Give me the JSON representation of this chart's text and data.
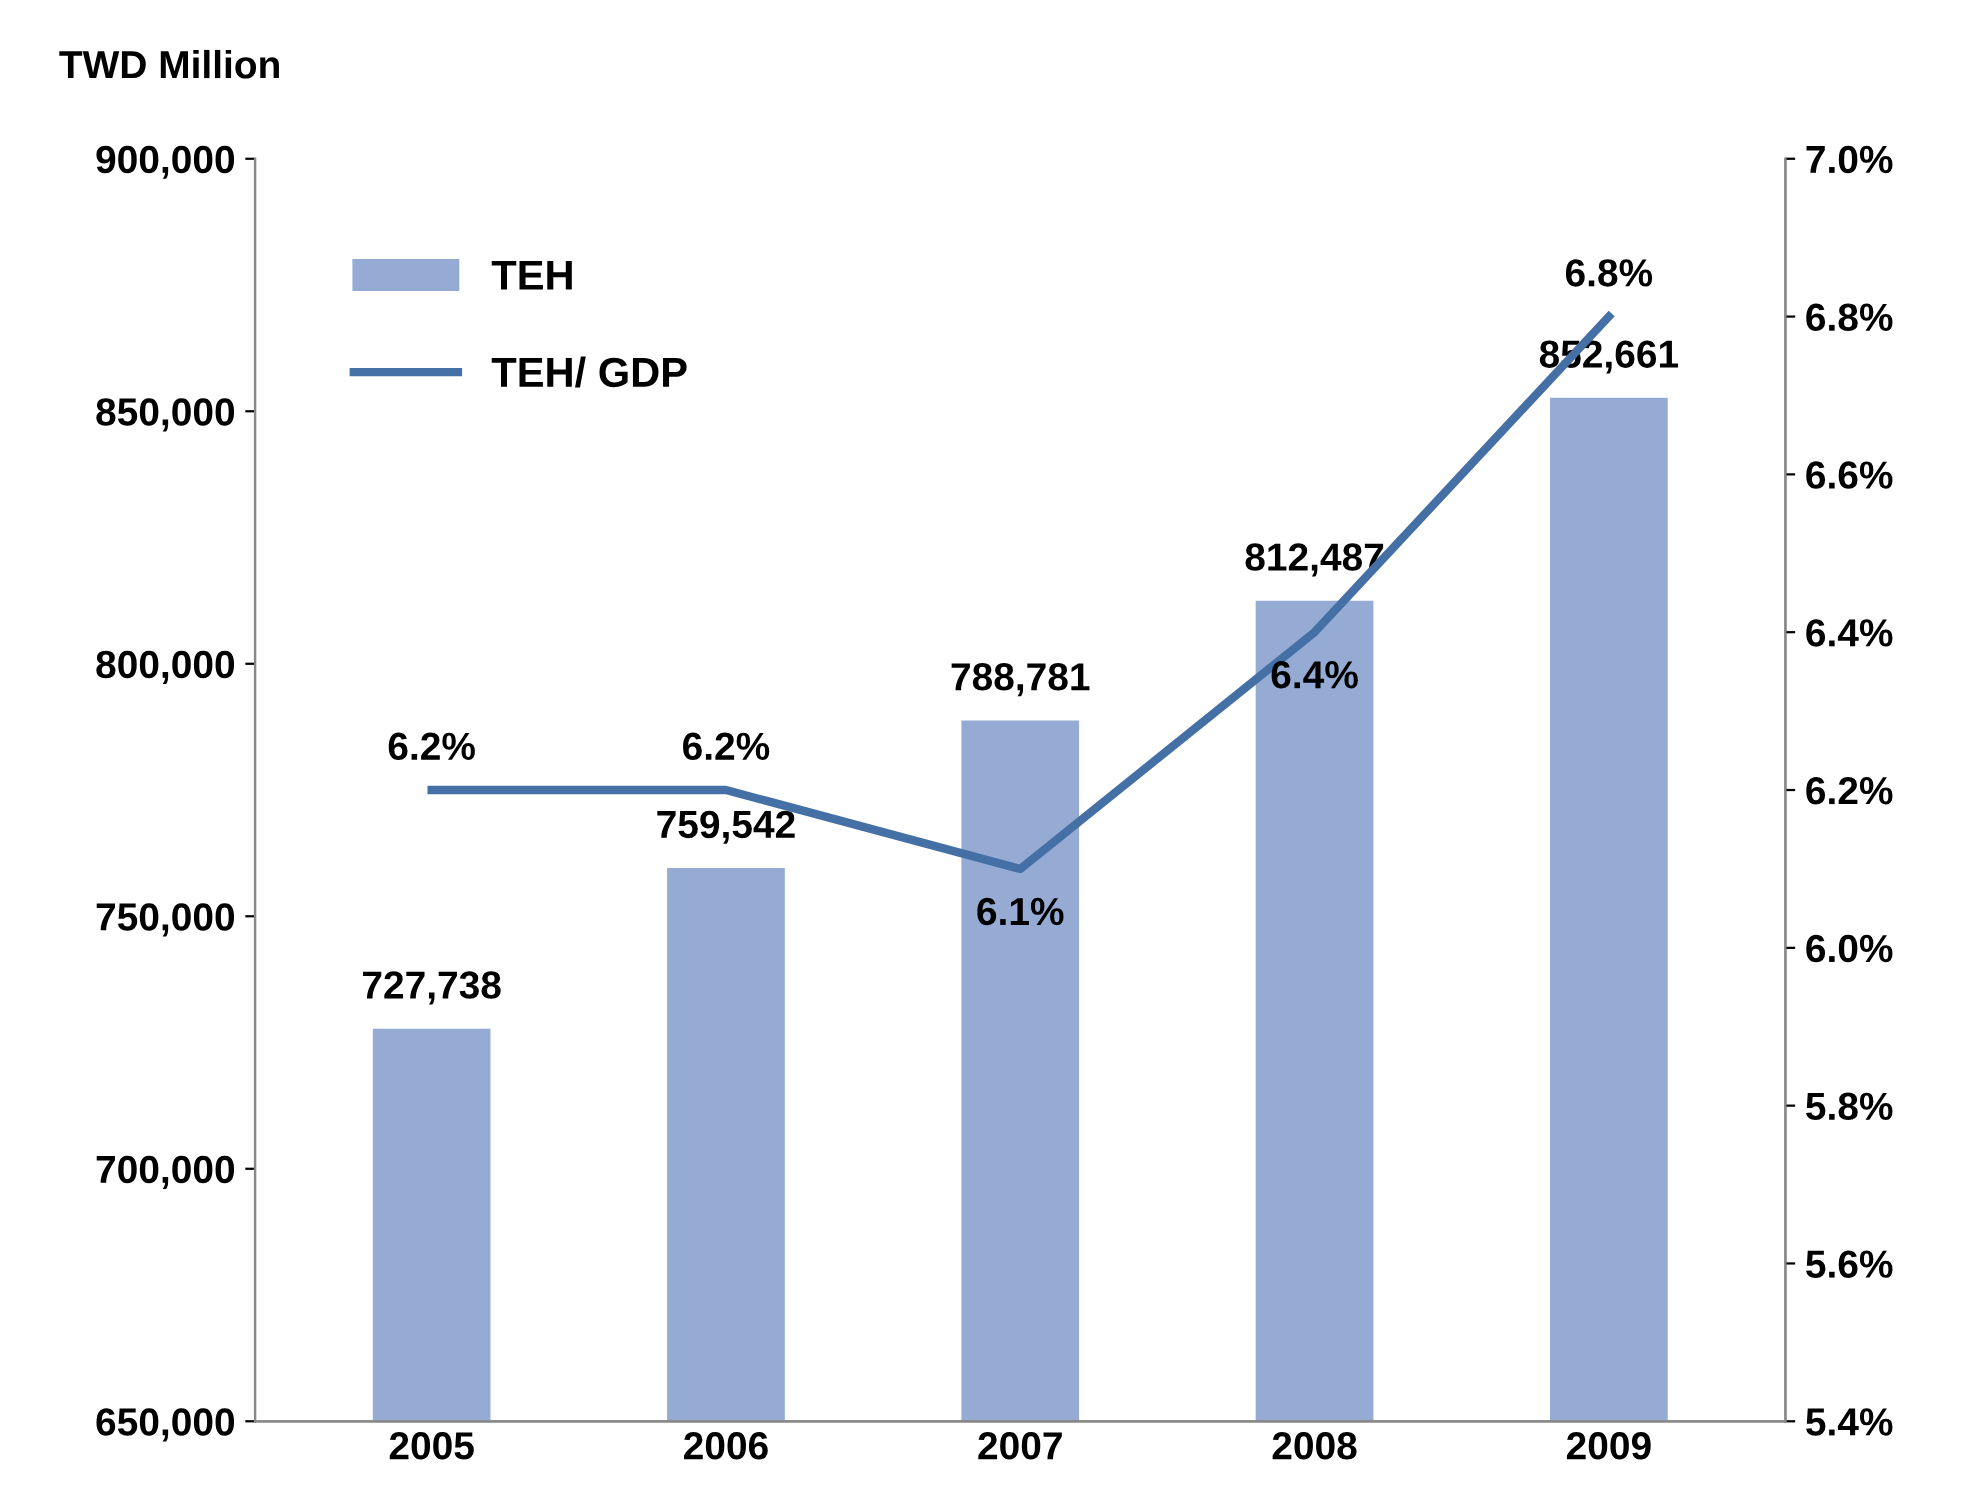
{
  "chart_data": {
    "type": "bar",
    "ylabel": "TWD Million",
    "categories": [
      "2005",
      "2006",
      "2007",
      "2008",
      "2009"
    ],
    "series": [
      {
        "name": "TEH",
        "color": "#95abd3",
        "values": [
          727738,
          759542,
          788781,
          812487,
          852661
        ],
        "value_labels": [
          "727,738",
          "759,542",
          "788,781",
          "812,487",
          "852,661"
        ]
      },
      {
        "name": "TEH/ GDP",
        "type": "line",
        "axis": "y2",
        "color": "#4470a6",
        "values": [
          6.2,
          6.2,
          6.1,
          6.4,
          6.8
        ],
        "value_labels": [
          "6.2%",
          "6.2%",
          "6.1%",
          "6.4%",
          "6.8%"
        ]
      }
    ],
    "ylim": [
      650000,
      900000
    ],
    "yticks": [
      {
        "value": 650000,
        "label": "650,000"
      },
      {
        "value": 700000,
        "label": "700,000"
      },
      {
        "value": 750000,
        "label": "750,000"
      },
      {
        "value": 800000,
        "label": "800,000"
      },
      {
        "value": 850000,
        "label": "850,000"
      },
      {
        "value": 900000,
        "label": "900,000"
      }
    ],
    "y2lim": [
      5.4,
      7.0
    ],
    "y2ticks": [
      {
        "value": 5.4,
        "label": "5.4%"
      },
      {
        "value": 5.6,
        "label": "5.6%"
      },
      {
        "value": 5.8,
        "label": "5.8%"
      },
      {
        "value": 6.0,
        "label": "6.0%"
      },
      {
        "value": 6.2,
        "label": "6.2%"
      },
      {
        "value": 6.4,
        "label": "6.4%"
      },
      {
        "value": 6.6,
        "label": "6.6%"
      },
      {
        "value": 6.8,
        "label": "6.8%"
      },
      {
        "value": 7.0,
        "label": "7.0%"
      }
    ],
    "grid": false,
    "legend": "top left",
    "marker": "none",
    "line_style": "solid"
  }
}
